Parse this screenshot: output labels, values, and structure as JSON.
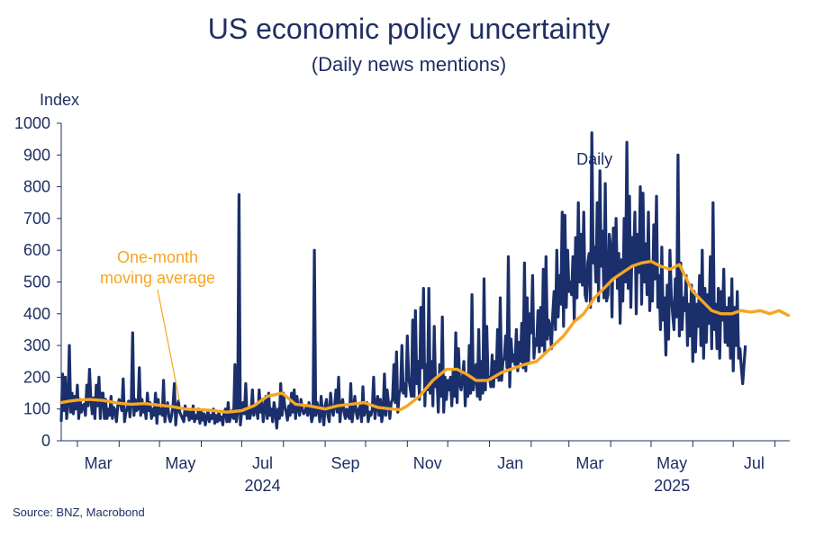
{
  "chart_data": {
    "type": "line",
    "title": "US economic policy uncertainty",
    "subtitle": "(Daily news mentions)",
    "ylabel": "Index",
    "ylim": [
      0,
      1000
    ],
    "yticks": [
      0,
      100,
      200,
      300,
      400,
      500,
      600,
      700,
      800,
      900,
      1000
    ],
    "x_range": [
      "2024-02-18",
      "2025-08-12"
    ],
    "month_ticks": [
      {
        "date": "2024-02-01",
        "label": ""
      },
      {
        "date": "2024-03-01",
        "label": "Mar"
      },
      {
        "date": "2024-04-01",
        "label": ""
      },
      {
        "date": "2024-05-01",
        "label": "May"
      },
      {
        "date": "2024-06-01",
        "label": ""
      },
      {
        "date": "2024-07-01",
        "label": "Jul"
      },
      {
        "date": "2024-08-01",
        "label": ""
      },
      {
        "date": "2024-09-01",
        "label": "Sep"
      },
      {
        "date": "2024-10-01",
        "label": ""
      },
      {
        "date": "2024-11-01",
        "label": "Nov"
      },
      {
        "date": "2024-12-01",
        "label": ""
      },
      {
        "date": "2025-01-01",
        "label": "Jan"
      },
      {
        "date": "2025-02-01",
        "label": ""
      },
      {
        "date": "2025-03-01",
        "label": "Mar"
      },
      {
        "date": "2025-04-01",
        "label": ""
      },
      {
        "date": "2025-05-01",
        "label": "May"
      },
      {
        "date": "2025-06-01",
        "label": ""
      },
      {
        "date": "2025-07-01",
        "label": "Jul"
      },
      {
        "date": "2025-08-01",
        "label": ""
      }
    ],
    "year_labels": [
      {
        "label": "2024",
        "date": "2024-07-01"
      },
      {
        "label": "2025",
        "date": "2025-05-01"
      }
    ],
    "grid": false,
    "series": [
      {
        "name": "Daily",
        "color": "#1a2f6b",
        "x_start": "2024-02-18",
        "step_days": 1,
        "values": [
          60,
          210,
          95,
          200,
          70,
          120,
          300,
          90,
          150,
          85,
          140,
          100,
          175,
          70,
          130,
          90,
          110,
          115,
          80,
          175,
          110,
          225,
          130,
          85,
          135,
          70,
          175,
          110,
          200,
          70,
          150,
          150,
          70,
          130,
          70,
          100,
          80,
          140,
          70,
          105,
          95,
          60,
          110,
          130,
          115,
          95,
          195,
          60,
          90,
          100,
          125,
          75,
          120,
          340,
          80,
          130,
          95,
          100,
          230,
          80,
          130,
          90,
          110,
          70,
          150,
          95,
          120,
          70,
          100,
          80,
          150,
          55,
          130,
          85,
          100,
          80,
          190,
          60,
          100,
          120,
          75,
          60,
          80,
          110,
          180,
          50,
          100,
          125,
          90,
          80,
          70,
          60,
          110,
          80,
          95,
          65,
          90,
          70,
          110,
          60,
          80,
          70,
          100,
          55,
          90,
          65,
          85,
          50,
          75,
          95,
          60,
          80,
          70,
          100,
          55,
          80,
          60,
          90,
          65,
          75,
          50,
          90,
          100,
          60,
          120,
          60,
          80,
          95,
          70,
          240,
          60,
          90,
          775,
          50,
          90,
          120,
          85,
          180,
          70,
          100,
          70,
          90,
          160,
          80,
          110,
          100,
          70,
          160,
          90,
          130,
          60,
          100,
          140,
          70,
          150,
          80,
          100,
          60,
          120,
          90,
          40,
          100,
          70,
          180,
          80,
          150,
          110,
          90,
          65,
          110,
          80,
          150,
          90,
          160,
          70,
          140,
          100,
          80,
          130,
          100,
          85,
          90,
          110,
          80,
          120,
          100,
          60,
          80,
          600,
          80,
          120,
          100,
          60,
          140,
          90,
          50,
          110,
          130,
          80,
          60,
          150,
          100,
          80,
          110,
          160,
          90,
          200,
          60,
          110,
          130,
          90,
          70,
          100,
          80,
          70,
          180,
          60,
          100,
          140,
          90,
          70,
          100,
          110,
          60,
          170,
          80,
          100,
          120,
          60,
          90,
          80,
          100,
          200,
          70,
          110,
          140,
          80,
          130,
          60,
          90,
          210,
          80,
          160,
          120,
          70,
          120,
          130,
          240,
          120,
          280,
          90,
          150,
          160,
          300,
          150,
          180,
          140,
          330,
          200,
          170,
          140,
          380,
          140,
          410,
          180,
          250,
          130,
          420,
          230,
          480,
          110,
          240,
          160,
          480,
          150,
          250,
          110,
          360,
          170,
          200,
          90,
          240,
          140,
          390,
          90,
          200,
          130,
          190,
          160,
          200,
          110,
          220,
          140,
          340,
          120,
          290,
          180,
          160,
          200,
          250,
          110,
          210,
          140,
          300,
          150,
          460,
          160,
          200,
          240,
          140,
          350,
          130,
          250,
          150,
          510,
          160,
          360,
          190,
          200,
          170,
          270,
          170,
          250,
          200,
          350,
          190,
          450,
          190,
          250,
          260,
          330,
          230,
          580,
          170,
          320,
          250,
          270,
          240,
          350,
          220,
          310,
          250,
          370,
          230,
          560,
          220,
          450,
          250,
          400,
          340,
          520,
          260,
          320,
          300,
          410,
          280,
          420,
          300,
          540,
          280,
          580,
          320,
          380,
          360,
          290,
          400,
          470,
          350,
          600,
          390,
          520,
          430,
          720,
          360,
          710,
          420,
          600,
          470,
          500,
          460,
          580,
          380,
          640,
          450,
          750,
          500,
          650,
          490,
          720,
          460,
          440,
          560,
          590,
          420,
          970,
          560,
          610,
          500,
          750,
          440,
          850,
          550,
          660,
          450,
          810,
          440,
          460,
          650,
          610,
          390,
          670,
          520,
          700,
          480,
          590,
          370,
          570,
          440,
          700,
          500,
          940,
          480,
          770,
          420,
          640,
          560,
          720,
          400,
          650,
          530,
          800,
          430,
          780,
          500,
          620,
          460,
          720,
          410,
          560,
          440,
          680,
          510,
          770,
          420,
          520,
          350,
          610,
          380,
          450,
          270,
          490,
          320,
          600,
          460,
          400,
          350,
          510,
          390,
          900,
          330,
          560,
          350,
          450,
          410,
          520,
          300,
          430,
          330,
          490,
          250,
          470,
          280,
          430,
          360,
          520,
          300,
          600,
          260,
          480,
          310,
          460,
          370,
          580,
          290,
          750,
          350,
          430,
          290,
          480,
          260,
          470,
          380,
          540,
          310,
          420,
          300,
          450,
          260,
          510,
          220,
          420,
          300,
          470,
          260,
          290,
          230,
          180,
          240,
          300
        ]
      },
      {
        "name": "One-month moving average",
        "color": "#f5a623",
        "points": [
          [
            "2024-02-18",
            120
          ],
          [
            "2024-02-24",
            125
          ],
          [
            "2024-03-01",
            128
          ],
          [
            "2024-03-10",
            130
          ],
          [
            "2024-03-20",
            127
          ],
          [
            "2024-04-01",
            118
          ],
          [
            "2024-04-10",
            115
          ],
          [
            "2024-04-20",
            117
          ],
          [
            "2024-05-01",
            112
          ],
          [
            "2024-05-10",
            108
          ],
          [
            "2024-05-20",
            100
          ],
          [
            "2024-06-01",
            98
          ],
          [
            "2024-06-10",
            95
          ],
          [
            "2024-06-20",
            90
          ],
          [
            "2024-07-01",
            95
          ],
          [
            "2024-07-10",
            110
          ],
          [
            "2024-07-20",
            140
          ],
          [
            "2024-07-31",
            150
          ],
          [
            "2024-08-10",
            115
          ],
          [
            "2024-08-20",
            110
          ],
          [
            "2024-09-01",
            100
          ],
          [
            "2024-09-10",
            110
          ],
          [
            "2024-09-20",
            115
          ],
          [
            "2024-09-30",
            120
          ],
          [
            "2024-10-10",
            105
          ],
          [
            "2024-10-20",
            100
          ],
          [
            "2024-10-27",
            98
          ],
          [
            "2024-11-01",
            110
          ],
          [
            "2024-11-10",
            140
          ],
          [
            "2024-11-20",
            190
          ],
          [
            "2024-11-30",
            225
          ],
          [
            "2024-12-08",
            225
          ],
          [
            "2024-12-15",
            210
          ],
          [
            "2024-12-22",
            190
          ],
          [
            "2024-12-31",
            190
          ],
          [
            "2025-01-10",
            215
          ],
          [
            "2025-01-20",
            230
          ],
          [
            "2025-01-27",
            240
          ],
          [
            "2025-02-05",
            250
          ],
          [
            "2025-02-15",
            290
          ],
          [
            "2025-02-25",
            330
          ],
          [
            "2025-03-05",
            375
          ],
          [
            "2025-03-12",
            400
          ],
          [
            "2025-03-20",
            450
          ],
          [
            "2025-03-27",
            480
          ],
          [
            "2025-04-03",
            510
          ],
          [
            "2025-04-10",
            530
          ],
          [
            "2025-04-17",
            550
          ],
          [
            "2025-04-24",
            560
          ],
          [
            "2025-05-01",
            565
          ],
          [
            "2025-05-08",
            550
          ],
          [
            "2025-05-15",
            540
          ],
          [
            "2025-05-22",
            555
          ],
          [
            "2025-06-01",
            470
          ],
          [
            "2025-06-08",
            440
          ],
          [
            "2025-06-15",
            410
          ],
          [
            "2025-06-22",
            400
          ],
          [
            "2025-06-30",
            400
          ],
          [
            "2025-07-07",
            410
          ],
          [
            "2025-07-14",
            405
          ],
          [
            "2025-07-21",
            410
          ],
          [
            "2025-07-28",
            400
          ],
          [
            "2025-08-04",
            410
          ],
          [
            "2025-08-11",
            395
          ]
        ]
      }
    ],
    "annotations": {
      "daily_label": {
        "text": "Daily",
        "date": "2025-03-20",
        "value": 870
      },
      "ma_label": {
        "line1": "One-month",
        "line2": "moving average",
        "pointer_to": {
          "date": "2024-05-16",
          "value": 122
        }
      }
    },
    "source": "Source: BNZ, Macrobond"
  }
}
